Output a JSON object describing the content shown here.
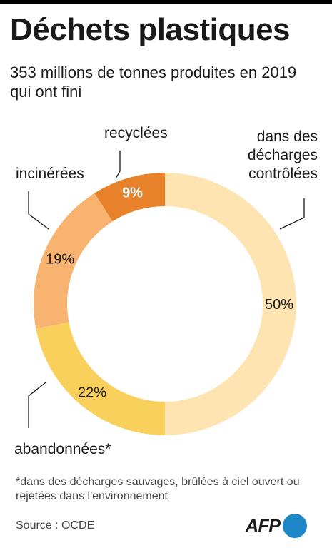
{
  "title": "Déchets plastiques",
  "subtitle": "353 millions de tonnes produites en 2019 qui ont fini",
  "chart_data": {
    "type": "pie",
    "donut": true,
    "title": "Déchets plastiques",
    "subtitle": "353 millions de tonnes produites en 2019 qui ont fini",
    "categories": [
      "dans des décharges contrôlées",
      "abandonnées*",
      "incinérées",
      "recyclées"
    ],
    "values": [
      50,
      22,
      19,
      9
    ],
    "value_labels": [
      "50%",
      "22%",
      "19%",
      "9%"
    ],
    "label_lines": [
      [
        "dans des",
        "décharges",
        "contrôlées"
      ],
      [
        "abandonnées*"
      ],
      [
        "incinérées"
      ],
      [
        "recyclées"
      ]
    ],
    "colors": [
      "#fde4b0",
      "#f9d05c",
      "#f7b36f",
      "#e8822a"
    ]
  },
  "footnote": "*dans des décharges sauvages, brûlées à ciel ouvert ou rejetées dans l'environnement",
  "source": "Source : OCDE",
  "logo": {
    "text": "AFP",
    "color": "#1e87c8"
  }
}
